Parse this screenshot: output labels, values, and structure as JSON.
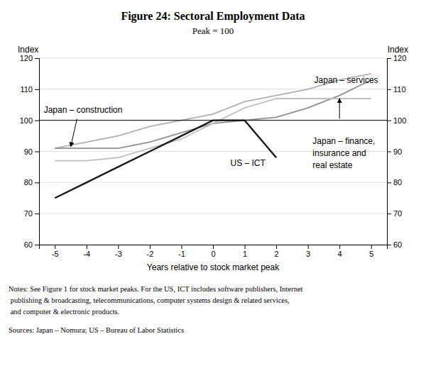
{
  "chart_data": {
    "type": "line",
    "title": "Figure 24: Sectoral Employment Data",
    "subtitle": "Peak = 100",
    "xlabel": "Years relative to stock market peak",
    "ylabel": "Index",
    "y2label": "Index",
    "x": [
      -5,
      -4,
      -3,
      -2,
      -1,
      0,
      1,
      2,
      3,
      4,
      5
    ],
    "xlim": [
      -5.5,
      5.5
    ],
    "xticks": [
      -5,
      -4,
      -3,
      -2,
      -1,
      0,
      1,
      2,
      3,
      4,
      5
    ],
    "ylim": [
      60,
      120
    ],
    "yticks": [
      60,
      70,
      80,
      90,
      100,
      110,
      120
    ],
    "y2lim": [
      60,
      120
    ],
    "y2ticks": [
      60,
      70,
      80,
      90,
      100,
      110,
      120
    ],
    "grid": true,
    "series": [
      {
        "color": "#b0b0b0",
        "values": [
          91,
          93,
          95,
          98,
          100,
          102,
          106,
          108,
          110,
          113,
          115
        ]
      },
      {
        "color": "#909090",
        "values": [
          91,
          91,
          91,
          93,
          96,
          99,
          100,
          101,
          104,
          108,
          113
        ]
      },
      {
        "color": "#c0c0c0",
        "values": [
          87,
          87,
          88,
          91,
          94,
          99,
          104,
          107,
          107,
          107,
          107
        ]
      },
      {
        "color": "#1a1a1a",
        "values": [
          75,
          80,
          85,
          90,
          95,
          100,
          100,
          88,
          null,
          null,
          null
        ]
      }
    ],
    "hlines": [
      100
    ],
    "annotations": [
      {
        "text": "Japan – services",
        "x": 3.2,
        "y": 111.5,
        "anchor": "bottom"
      },
      {
        "text": "Japan – construction",
        "x": -5.35,
        "y": 101.8,
        "anchor": "bottom",
        "arrow": {
          "x": -4.3,
          "y": 100.5,
          "x_end": -4.5,
          "y_end": 91.5
        }
      },
      {
        "text": "US – ICT",
        "x": 0.55,
        "y": 87.5,
        "anchor": "top"
      },
      {
        "text": "Japan – finance,\ninsurance and\nreal estate",
        "x": 3.15,
        "y": 94.5,
        "anchor": "top",
        "arrow": {
          "x": 4.0,
          "y": 100.5,
          "x_end": 4.0,
          "y_end": 107.0
        }
      }
    ],
    "notes": [
      "Notes:\tSee Figure 1 for stock market peaks. For the US, ICT includes software publishers, Internet",
      "\tpublishing & broadcasting, telecommunications, computer systems design & related services,",
      "\tand computer & electronic products."
    ],
    "sources": "Sources: Japan – Nomura; US – Bureau of Labor Statistics"
  }
}
